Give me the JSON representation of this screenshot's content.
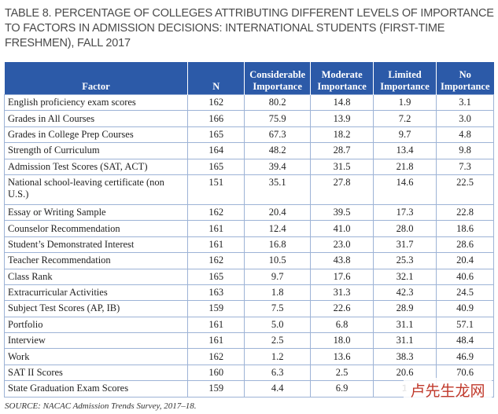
{
  "title": "TABLE 8. PERCENTAGE OF COLLEGES ATTRIBUTING DIFFERENT LEVELS OF IMPORTANCE TO FACTORS IN ADMISSION DECISIONS: INTERNATIONAL STUDENTS (FIRST-TIME FRESHMEN), FALL 2017",
  "header": {
    "factor": "Factor",
    "n": "N",
    "considerable": "Considerable Importance",
    "moderate": "Moderate Importance",
    "limited": "Limited Importance",
    "none": "No Importance"
  },
  "rows": [
    {
      "factor": "English proficiency exam scores",
      "n": "162",
      "considerable": "80.2",
      "moderate": "14.8",
      "limited": "1.9",
      "none": "3.1"
    },
    {
      "factor": "Grades in All Courses",
      "n": "166",
      "considerable": "75.9",
      "moderate": "13.9",
      "limited": "7.2",
      "none": "3.0"
    },
    {
      "factor": "Grades in College Prep Courses",
      "n": "165",
      "considerable": "67.3",
      "moderate": "18.2",
      "limited": "9.7",
      "none": "4.8"
    },
    {
      "factor": "Strength of Curriculum",
      "n": "164",
      "considerable": "48.2",
      "moderate": "28.7",
      "limited": "13.4",
      "none": "9.8"
    },
    {
      "factor": "Admission Test Scores (SAT, ACT)",
      "n": "165",
      "considerable": "39.4",
      "moderate": "31.5",
      "limited": "21.8",
      "none": "7.3"
    },
    {
      "factor": "National school-leaving certificate (non U.S.)",
      "n": "151",
      "considerable": "35.1",
      "moderate": "27.8",
      "limited": "14.6",
      "none": "22.5"
    },
    {
      "factor": "Essay or Writing Sample",
      "n": "162",
      "considerable": "20.4",
      "moderate": "39.5",
      "limited": "17.3",
      "none": "22.8"
    },
    {
      "factor": "Counselor Recommendation",
      "n": "161",
      "considerable": "12.4",
      "moderate": "41.0",
      "limited": "28.0",
      "none": "18.6"
    },
    {
      "factor": "Student’s Demonstrated Interest",
      "n": "161",
      "considerable": "16.8",
      "moderate": "23.0",
      "limited": "31.7",
      "none": "28.6"
    },
    {
      "factor": "Teacher Recommendation",
      "n": "162",
      "considerable": "10.5",
      "moderate": "43.8",
      "limited": "25.3",
      "none": "20.4"
    },
    {
      "factor": "Class Rank",
      "n": "165",
      "considerable": "9.7",
      "moderate": "17.6",
      "limited": "32.1",
      "none": "40.6"
    },
    {
      "factor": "Extracurricular Activities",
      "n": "163",
      "considerable": "1.8",
      "moderate": "31.3",
      "limited": "42.3",
      "none": "24.5"
    },
    {
      "factor": "Subject Test Scores (AP, IB)",
      "n": "159",
      "considerable": "7.5",
      "moderate": "22.6",
      "limited": "28.9",
      "none": "40.9"
    },
    {
      "factor": "Portfolio",
      "n": "161",
      "considerable": "5.0",
      "moderate": "6.8",
      "limited": "31.1",
      "none": "57.1"
    },
    {
      "factor": "Interview",
      "n": "161",
      "considerable": "2.5",
      "moderate": "18.0",
      "limited": "31.1",
      "none": "48.4"
    },
    {
      "factor": "Work",
      "n": "162",
      "considerable": "1.2",
      "moderate": "13.6",
      "limited": "38.3",
      "none": "46.9"
    },
    {
      "factor": "SAT II Scores",
      "n": "160",
      "considerable": "6.3",
      "moderate": "2.5",
      "limited": "20.6",
      "none": "70.6"
    },
    {
      "factor": "State Graduation Exam Scores",
      "n": "159",
      "considerable": "4.4",
      "moderate": "6.9",
      "limited": "1",
      "none": ""
    }
  ],
  "source": "SOURCE: NACAC Admission Trends Survey, 2017–18.",
  "watermark": "卢先生龙网",
  "colors": {
    "header_bg": "#2c5aa8",
    "grid": "#9db3d6",
    "title": "#4a4a4a"
  }
}
